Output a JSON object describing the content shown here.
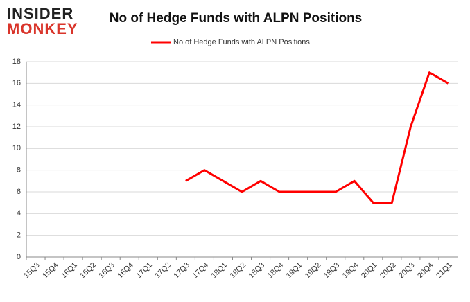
{
  "logo": {
    "top": "INSIDER",
    "bottom": "MONKEY"
  },
  "chart_data": {
    "type": "line",
    "title": "No of Hedge Funds with ALPN Positions",
    "categories": [
      "15Q3",
      "15Q4",
      "16Q1",
      "16Q2",
      "16Q3",
      "16Q4",
      "17Q1",
      "17Q2",
      "17Q3",
      "17Q4",
      "18Q1",
      "18Q2",
      "18Q3",
      "18Q4",
      "19Q1",
      "19Q2",
      "19Q3",
      "19Q4",
      "20Q1",
      "20Q2",
      "20Q3",
      "20Q4",
      "21Q1"
    ],
    "series": [
      {
        "name": "No of Hedge Funds with ALPN Positions",
        "color": "#ff0000",
        "values": [
          null,
          null,
          null,
          null,
          null,
          null,
          null,
          null,
          7,
          8,
          7,
          6,
          7,
          6,
          6,
          6,
          6,
          7,
          5,
          5,
          12,
          17,
          16
        ]
      }
    ],
    "ylim": [
      0,
      18
    ],
    "yticks": [
      0,
      2,
      4,
      6,
      8,
      10,
      12,
      14,
      16,
      18
    ],
    "grid": true,
    "legend": "top"
  }
}
